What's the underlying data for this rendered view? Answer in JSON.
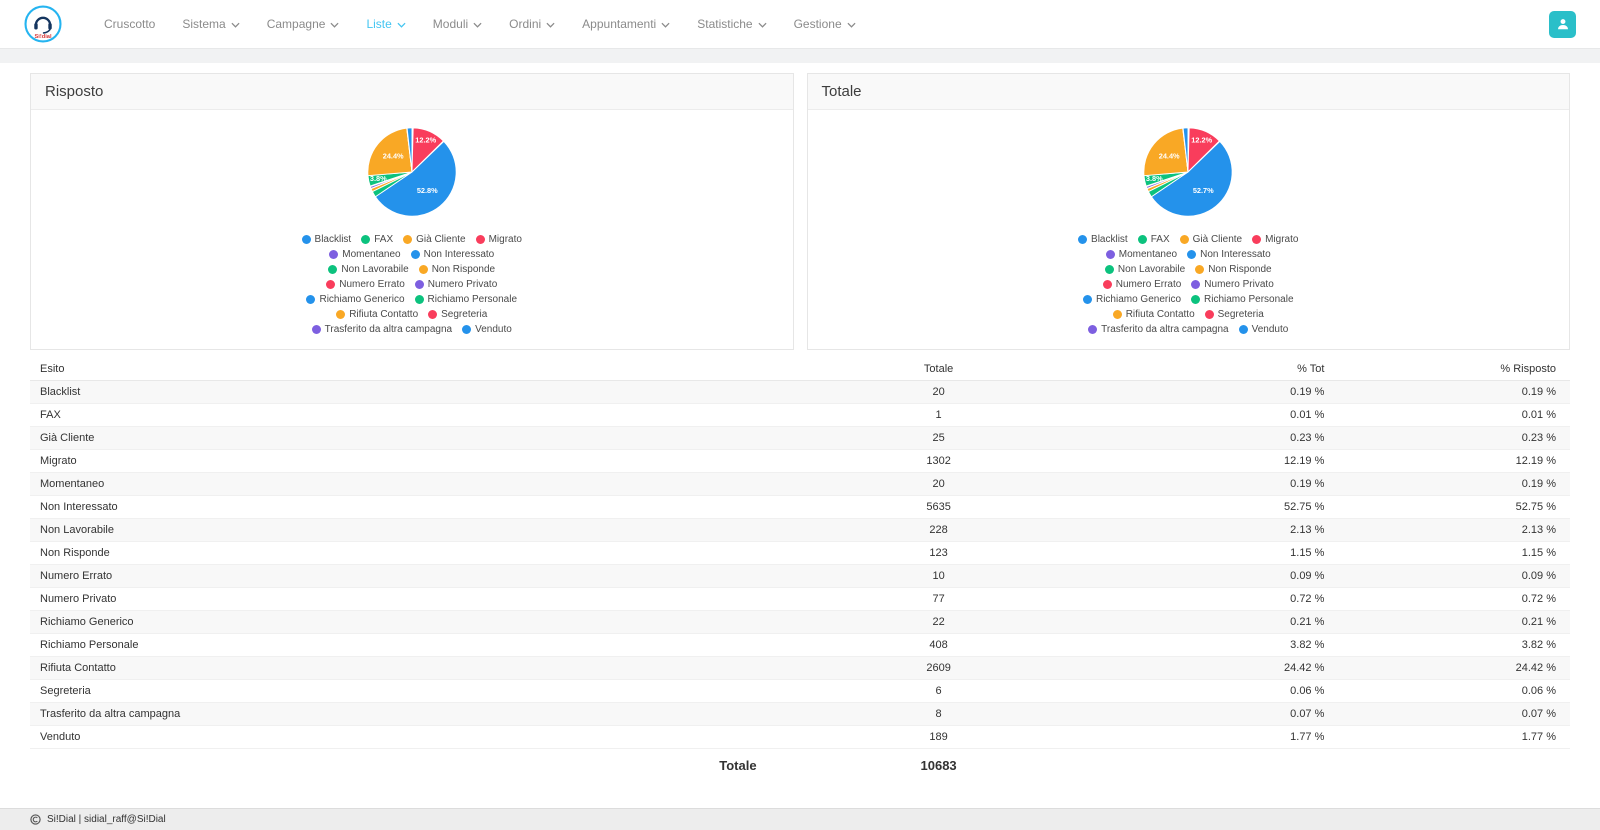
{
  "navbar": {
    "brand": "Si!dial",
    "items": [
      {
        "label": "Cruscotto",
        "has_dropdown": false,
        "active": false
      },
      {
        "label": "Sistema",
        "has_dropdown": true,
        "active": false
      },
      {
        "label": "Campagne",
        "has_dropdown": true,
        "active": false
      },
      {
        "label": "Liste",
        "has_dropdown": true,
        "active": true
      },
      {
        "label": "Moduli",
        "has_dropdown": true,
        "active": false
      },
      {
        "label": "Ordini",
        "has_dropdown": true,
        "active": false
      },
      {
        "label": "Appuntamenti",
        "has_dropdown": true,
        "active": false
      },
      {
        "label": "Statistiche",
        "has_dropdown": true,
        "active": false
      },
      {
        "label": "Gestione",
        "has_dropdown": true,
        "active": false
      }
    ],
    "accent_color": "#45c5f1",
    "user_button_color": "#2abfc9"
  },
  "panels": [
    {
      "title": "Risposto"
    },
    {
      "title": "Totale"
    }
  ],
  "chart_data": [
    {
      "type": "pie",
      "title": "Risposto",
      "labels": [
        "Blacklist",
        "FAX",
        "Già Cliente",
        "Migrato",
        "Momentaneo",
        "Non Interessato",
        "Non Lavorabile",
        "Non Risponde",
        "Numero Errato",
        "Numero Privato",
        "Richiamo Generico",
        "Richiamo Personale",
        "Rifiuta Contatto",
        "Segreteria",
        "Trasferito da altra campagna",
        "Venduto"
      ],
      "values": [
        20,
        1,
        25,
        1302,
        20,
        5635,
        228,
        123,
        10,
        77,
        22,
        408,
        2609,
        6,
        8,
        189
      ],
      "slice_labels": [
        "",
        "",
        "",
        "12.2%",
        "",
        "52.8%",
        "",
        "",
        "",
        "",
        "",
        "3.8%",
        "24.4%",
        "",
        "",
        ""
      ],
      "colors": [
        "#2492eb",
        "#0cc27e",
        "#f9a825",
        "#f93d5c",
        "#7d5fe0"
      ],
      "legend_position": "bottom"
    },
    {
      "type": "pie",
      "title": "Totale",
      "labels": [
        "Blacklist",
        "FAX",
        "Già Cliente",
        "Migrato",
        "Momentaneo",
        "Non Interessato",
        "Non Lavorabile",
        "Non Risponde",
        "Numero Errato",
        "Numero Privato",
        "Richiamo Generico",
        "Richiamo Personale",
        "Rifiuta Contatto",
        "Segreteria",
        "Trasferito da altra campagna",
        "Venduto"
      ],
      "values": [
        20,
        1,
        25,
        1302,
        20,
        5635,
        228,
        123,
        10,
        77,
        22,
        408,
        2609,
        6,
        8,
        189
      ],
      "slice_labels": [
        "",
        "",
        "",
        "12.2%",
        "",
        "52.7%",
        "",
        "",
        "",
        "",
        "",
        "3.8%",
        "24.4%",
        "",
        "",
        ""
      ],
      "colors": [
        "#2492eb",
        "#0cc27e",
        "#f9a825",
        "#f93d5c",
        "#7d5fe0"
      ],
      "legend_position": "bottom"
    }
  ],
  "table": {
    "columns": [
      "Esito",
      "Totale",
      "% Tot",
      "% Risposto"
    ],
    "rows": [
      [
        "Blacklist",
        "20",
        "0.19 %",
        "0.19 %"
      ],
      [
        "FAX",
        "1",
        "0.01 %",
        "0.01 %"
      ],
      [
        "Già Cliente",
        "25",
        "0.23 %",
        "0.23 %"
      ],
      [
        "Migrato",
        "1302",
        "12.19 %",
        "12.19 %"
      ],
      [
        "Momentaneo",
        "20",
        "0.19 %",
        "0.19 %"
      ],
      [
        "Non Interessato",
        "5635",
        "52.75 %",
        "52.75 %"
      ],
      [
        "Non Lavorabile",
        "228",
        "2.13 %",
        "2.13 %"
      ],
      [
        "Non Risponde",
        "123",
        "1.15 %",
        "1.15 %"
      ],
      [
        "Numero Errato",
        "10",
        "0.09 %",
        "0.09 %"
      ],
      [
        "Numero Privato",
        "77",
        "0.72 %",
        "0.72 %"
      ],
      [
        "Richiamo Generico",
        "22",
        "0.21 %",
        "0.21 %"
      ],
      [
        "Richiamo Personale",
        "408",
        "3.82 %",
        "3.82 %"
      ],
      [
        "Rifiuta Contatto",
        "2609",
        "24.42 %",
        "24.42 %"
      ],
      [
        "Segreteria",
        "6",
        "0.06 %",
        "0.06 %"
      ],
      [
        "Trasferito da altra campagna",
        "8",
        "0.07 %",
        "0.07 %"
      ],
      [
        "Venduto",
        "189",
        "1.77 %",
        "1.77 %"
      ]
    ],
    "footer": {
      "label": "Totale",
      "total": "10683"
    }
  },
  "footer": {
    "text": "Si!Dial | sidial_raff@Si!Dial"
  }
}
